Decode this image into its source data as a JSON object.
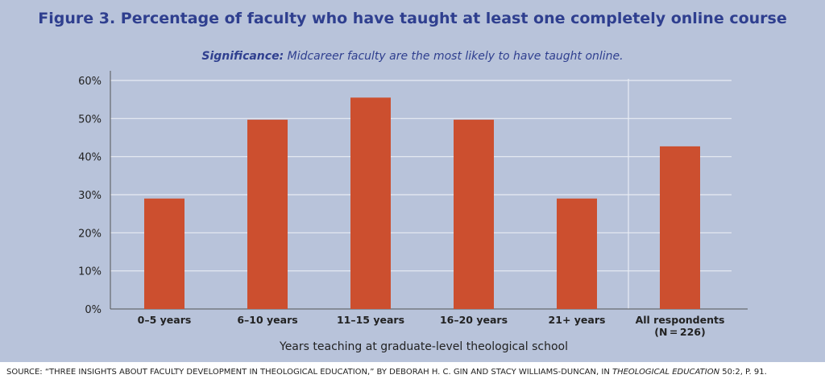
{
  "chart_data": {
    "type": "bar",
    "title": "Figure 3. Percentage of faculty who have taught at least one completely online course",
    "subtitle_lead": "Significance:",
    "subtitle_text": " Midcareer faculty are the most likely to have taught online.",
    "categories": [
      "0–5 years",
      "6–10 years",
      "11–15 years",
      "16–20 years",
      "21+ years",
      "All respondents"
    ],
    "category_sublabels": [
      "",
      "",
      "",
      "",
      "",
      "(N = 226)"
    ],
    "values": [
      29,
      49.7,
      55.5,
      49.7,
      29,
      42.7
    ],
    "xlabel": "Years teaching at graduate-level theological school",
    "ylabel": "",
    "ylim": [
      0,
      60
    ],
    "yticks": [
      "0%",
      "10%",
      "20%",
      "30%",
      "40%",
      "50%",
      "60%"
    ],
    "grid": true,
    "legend": "none"
  },
  "colors": {
    "bar": "#cc4f2f",
    "background": "#b8c3da",
    "gridline": "#e8ecf4",
    "title": "#2f3f8f",
    "axis": "#555555"
  },
  "source": {
    "prefix": "SOURCE: “THREE INSIGHTS ABOUT FACULTY DEVELOPMENT IN THEOLOGICAL EDUCATION,” BY DEBORAH H. C. GIN AND STACY WILLIAMS-DUNCAN, IN ",
    "journal": "THEOLOGICAL EDUCATION",
    "suffix": " 50:2, P. 91."
  }
}
